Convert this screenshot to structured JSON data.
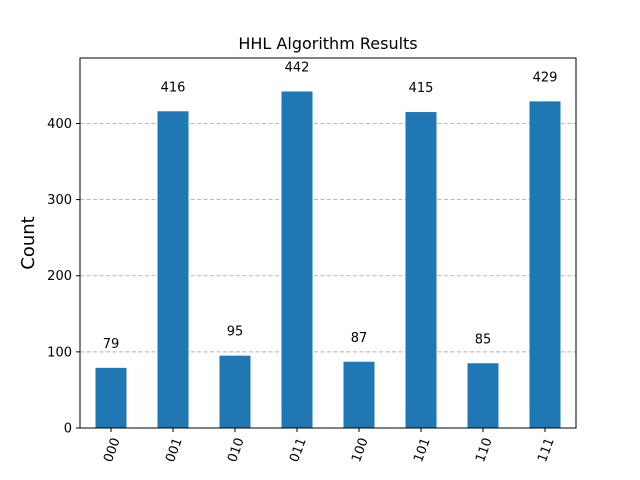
{
  "chart_data": {
    "type": "bar",
    "title": "HHL Algorithm Results",
    "xlabel": "",
    "ylabel": "Count",
    "categories": [
      "000",
      "001",
      "010",
      "011",
      "100",
      "101",
      "110",
      "111"
    ],
    "values": [
      79,
      416,
      95,
      442,
      87,
      415,
      85,
      429
    ],
    "ylim": [
      0,
      486
    ],
    "yticks": [
      0,
      100,
      200,
      300,
      400
    ],
    "grid": "y-dashed",
    "bar_color": "#1f77b4",
    "data_labels": [
      "79",
      "416",
      "95",
      "442",
      "87",
      "415",
      "85",
      "429"
    ]
  }
}
